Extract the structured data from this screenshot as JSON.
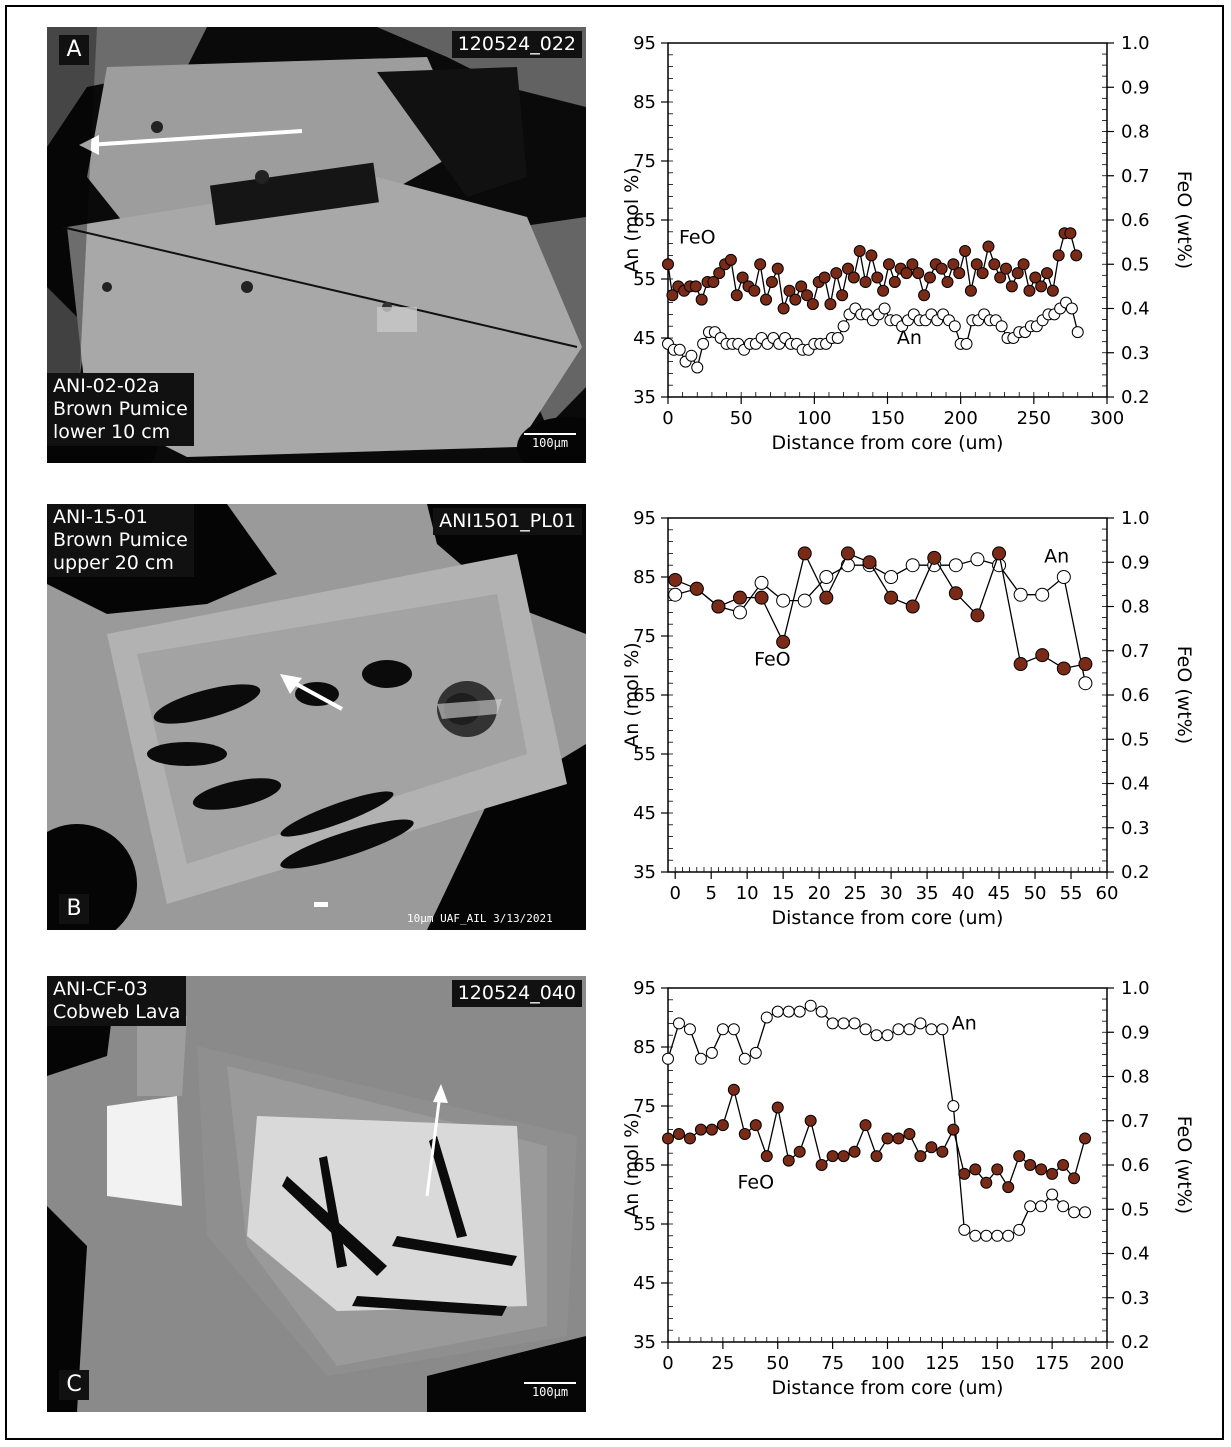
{
  "panels": [
    {
      "letter": "A",
      "image_id": "120524_022",
      "sample_lines": "ANI-02-02a\nBrown Pumice\nlower 10 cm",
      "scale_label": "100μm",
      "footer": ""
    },
    {
      "letter": "B",
      "image_id": "ANI1501_PL01",
      "sample_lines": "ANI-15-01\nBrown Pumice\nupper 20 cm",
      "scale_label": "",
      "footer": "10μm  UAF_AIL  3/13/2021"
    },
    {
      "letter": "C",
      "image_id": "120524_040",
      "sample_lines": "ANI-CF-03\nCobweb Lava",
      "scale_label": "100μm",
      "footer": ""
    }
  ],
  "colors": {
    "feo_fill": "#7a2b17",
    "an_fill": "#ffffff",
    "line": "#000000"
  },
  "chart_data": [
    {
      "type": "line",
      "xlabel": "Distance from core (um)",
      "ylabel": "An (mol %)",
      "y2label": "FeO (wt%)",
      "xlim": [
        0,
        300
      ],
      "xticks": [
        0,
        50,
        100,
        150,
        200,
        250,
        300
      ],
      "ylim": [
        35,
        95
      ],
      "yticks": [
        35,
        45,
        55,
        65,
        75,
        85,
        95
      ],
      "y2lim": [
        0.2,
        1.0
      ],
      "y2ticks": [
        "0.2",
        "0.3",
        "0.4",
        "0.5",
        "0.6",
        "0.7",
        "0.8",
        "0.9",
        "1.0"
      ],
      "series": [
        {
          "name": "FeO",
          "axis": "right",
          "x": [
            0,
            3,
            7,
            11,
            15,
            19,
            23,
            27,
            31,
            35,
            39,
            43,
            47,
            51,
            55,
            59,
            63,
            67,
            71,
            75,
            79,
            83,
            87,
            91,
            95,
            99,
            103,
            107,
            111,
            115,
            119,
            123,
            127,
            131,
            135,
            139,
            143,
            147,
            151,
            155,
            159,
            163,
            167,
            171,
            175,
            179,
            183,
            187,
            191,
            195,
            199,
            203,
            207,
            211,
            215,
            219,
            223,
            227,
            231,
            235,
            239,
            243,
            247,
            251,
            255,
            259,
            263,
            267,
            271,
            275,
            279
          ],
          "y": [
            0.5,
            0.43,
            0.45,
            0.44,
            0.45,
            0.45,
            0.42,
            0.46,
            0.46,
            0.48,
            0.5,
            0.51,
            0.43,
            0.47,
            0.45,
            0.44,
            0.5,
            0.42,
            0.46,
            0.49,
            0.4,
            0.44,
            0.42,
            0.45,
            0.43,
            0.41,
            0.46,
            0.47,
            0.41,
            0.48,
            0.43,
            0.49,
            0.47,
            0.53,
            0.46,
            0.52,
            0.47,
            0.44,
            0.5,
            0.46,
            0.49,
            0.48,
            0.5,
            0.48,
            0.43,
            0.47,
            0.5,
            0.49,
            0.46,
            0.5,
            0.48,
            0.53,
            0.44,
            0.5,
            0.48,
            0.54,
            0.5,
            0.47,
            0.49,
            0.45,
            0.48,
            0.5,
            0.44,
            0.47,
            0.45,
            0.48,
            0.44,
            0.52,
            0.57,
            0.57,
            0.52
          ]
        },
        {
          "name": "An",
          "axis": "left",
          "x": [
            0,
            4,
            8,
            12,
            16,
            20,
            24,
            28,
            32,
            36,
            40,
            44,
            48,
            52,
            56,
            60,
            64,
            68,
            72,
            76,
            80,
            84,
            88,
            92,
            96,
            100,
            104,
            108,
            112,
            116,
            120,
            124,
            128,
            132,
            136,
            140,
            144,
            148,
            152,
            156,
            160,
            164,
            168,
            172,
            176,
            180,
            184,
            188,
            192,
            196,
            200,
            204,
            208,
            212,
            216,
            220,
            224,
            228,
            232,
            236,
            240,
            244,
            248,
            252,
            256,
            260,
            264,
            268,
            272,
            276,
            280
          ],
          "y": [
            44,
            43,
            43,
            41,
            42,
            40,
            44,
            46,
            46,
            45,
            44,
            44,
            44,
            43,
            44,
            44,
            45,
            44,
            45,
            44,
            45,
            44,
            44,
            43,
            43,
            44,
            44,
            44,
            45,
            45,
            47,
            49,
            50,
            49,
            49,
            48,
            49,
            50,
            48,
            48,
            47,
            48,
            49,
            48,
            48,
            49,
            48,
            49,
            48,
            47,
            44,
            44,
            48,
            48,
            49,
            48,
            48,
            47,
            45,
            45,
            46,
            46,
            47,
            47,
            48,
            49,
            49,
            50,
            51,
            50,
            46
          ]
        }
      ],
      "annotations": [
        {
          "text": "FeO",
          "x": 20,
          "y": 61
        },
        {
          "text": "An",
          "x": 165,
          "y": 44
        }
      ]
    },
    {
      "type": "line",
      "xlabel": "Distance from core (um)",
      "ylabel": "An (mol %)",
      "y2label": "FeO (wt%)",
      "xlim": [
        -1,
        60
      ],
      "xticks": [
        0,
        5,
        10,
        15,
        20,
        25,
        30,
        35,
        40,
        45,
        50,
        55,
        60
      ],
      "ylim": [
        35,
        95
      ],
      "yticks": [
        35,
        45,
        55,
        65,
        75,
        85,
        95
      ],
      "y2lim": [
        0.2,
        1.0
      ],
      "y2ticks": [
        "0.2",
        "0.3",
        "0.4",
        "0.5",
        "0.6",
        "0.7",
        "0.8",
        "0.9",
        "1.0"
      ],
      "series": [
        {
          "name": "An",
          "axis": "left",
          "x": [
            0,
            3,
            6,
            9,
            12,
            15,
            18,
            21,
            24,
            27,
            30,
            33,
            36,
            39,
            42,
            45,
            48,
            51,
            54,
            57
          ],
          "y": [
            82,
            83,
            80,
            79,
            84,
            81,
            81,
            85,
            87,
            87,
            85,
            87,
            87,
            87,
            88,
            87,
            82,
            82,
            85,
            67
          ]
        },
        {
          "name": "FeO",
          "axis": "right",
          "x": [
            0,
            3,
            6,
            9,
            12,
            15,
            18,
            21,
            24,
            27,
            30,
            33,
            36,
            39,
            42,
            45,
            48,
            51,
            54,
            57
          ],
          "y": [
            0.86,
            0.84,
            0.8,
            0.82,
            0.82,
            0.72,
            0.92,
            0.82,
            0.92,
            0.9,
            0.82,
            0.8,
            0.91,
            0.83,
            0.78,
            0.92,
            0.67,
            0.69,
            0.66,
            0.67
          ]
        }
      ],
      "annotations": [
        {
          "text": "An",
          "x": 53,
          "y": 87.5
        },
        {
          "text": "FeO",
          "x": 13.5,
          "y": 70
        }
      ]
    },
    {
      "type": "line",
      "xlabel": "Distance from core (um)",
      "ylabel": "An (mol %)",
      "y2label": "FeO (wt%)",
      "xlim": [
        0,
        200
      ],
      "xticks": [
        0,
        25,
        50,
        75,
        100,
        125,
        150,
        175,
        200
      ],
      "ylim": [
        35,
        95
      ],
      "yticks": [
        35,
        45,
        55,
        65,
        75,
        85,
        95
      ],
      "y2lim": [
        0.2,
        1.0
      ],
      "y2ticks": [
        "0.2",
        "0.3",
        "0.4",
        "0.5",
        "0.6",
        "0.7",
        "0.8",
        "0.9",
        "1.0"
      ],
      "series": [
        {
          "name": "An",
          "axis": "left",
          "x": [
            0,
            5,
            10,
            15,
            20,
            25,
            30,
            35,
            40,
            45,
            50,
            55,
            60,
            65,
            70,
            75,
            80,
            85,
            90,
            95,
            100,
            105,
            110,
            115,
            120,
            125,
            130,
            135,
            140,
            145,
            150,
            155,
            160,
            165,
            170,
            175,
            180,
            185,
            190
          ],
          "y": [
            83,
            89,
            88,
            83,
            84,
            88,
            88,
            83,
            84,
            90,
            91,
            91,
            91,
            92,
            91,
            89,
            89,
            89,
            88,
            87,
            87,
            88,
            88,
            89,
            88,
            88,
            75,
            54,
            53,
            53,
            53,
            53,
            54,
            58,
            58,
            60,
            58,
            57,
            57
          ]
        },
        {
          "name": "FeO",
          "axis": "right",
          "x": [
            0,
            5,
            10,
            15,
            20,
            25,
            30,
            35,
            40,
            45,
            50,
            55,
            60,
            65,
            70,
            75,
            80,
            85,
            90,
            95,
            100,
            105,
            110,
            115,
            120,
            125,
            130,
            135,
            140,
            145,
            150,
            155,
            160,
            165,
            170,
            175,
            180,
            185,
            190
          ],
          "y": [
            0.66,
            0.67,
            0.66,
            0.68,
            0.68,
            0.69,
            0.77,
            0.67,
            0.69,
            0.62,
            0.73,
            0.61,
            0.63,
            0.7,
            0.6,
            0.62,
            0.62,
            0.63,
            0.69,
            0.62,
            0.66,
            0.66,
            0.67,
            0.62,
            0.64,
            0.63,
            0.68,
            0.58,
            0.59,
            0.56,
            0.59,
            0.55,
            0.62,
            0.6,
            0.59,
            0.58,
            0.6,
            0.57,
            0.66
          ]
        }
      ],
      "annotations": [
        {
          "text": "An",
          "x": 135,
          "y": 88
        },
        {
          "text": "FeO",
          "x": 40,
          "y": 61
        }
      ]
    }
  ]
}
